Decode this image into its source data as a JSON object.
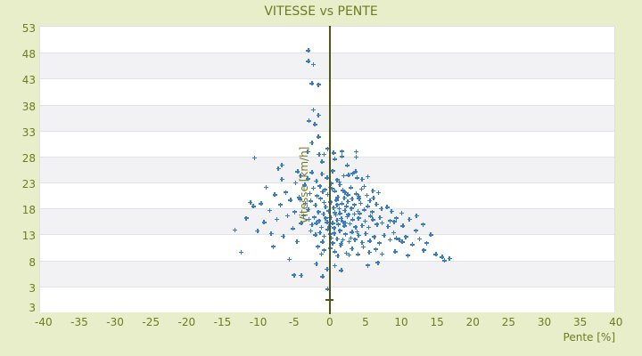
{
  "title": "VITESSE vs PENTE",
  "colors": {
    "background": "#e8eeca",
    "band_white": "#ffffff",
    "band_gray": "#f2f2f4",
    "band_border": "#e2e2e9",
    "axis_line": "#4d5916",
    "text": "#6e7b21",
    "marker": "#3a7cc2"
  },
  "chart_data": {
    "type": "scatter",
    "title": "VITESSE vs PENTE",
    "xlabel": "Pente [%]",
    "ylabel": "Vitesse [km/h]",
    "legend": "none",
    "grid": "horizontal-bands",
    "marker": "plus",
    "x_tick_values": [
      -40,
      -35,
      -30,
      -25,
      -20,
      -15,
      -10,
      -5,
      0,
      5,
      10,
      15,
      20,
      25,
      30,
      35,
      40
    ],
    "x_tick_labels": [
      "-40",
      "-35",
      "-30",
      "-25",
      "-20",
      "-15",
      "-10",
      "-5",
      "0",
      "5",
      "10",
      "15",
      "20",
      "25",
      "30",
      "35",
      "40"
    ],
    "y_tick_labels": [
      "53",
      "48",
      "43",
      "38",
      "33",
      "28",
      "23",
      "18",
      "13",
      "8",
      "3",
      "3"
    ],
    "x_range": [
      -40.6,
      39.9
    ],
    "y_range": [
      -2.2,
      53.0
    ],
    "points": [
      [
        -3.1,
        48.4
      ],
      [
        -3.1,
        46.3
      ],
      [
        -2.4,
        45.7
      ],
      [
        -2.6,
        42.0
      ],
      [
        -1.7,
        41.8
      ],
      [
        -2.4,
        36.9
      ],
      [
        -1.7,
        35.9
      ],
      [
        -3.0,
        34.8
      ],
      [
        -2.2,
        34.1
      ],
      [
        -1.7,
        31.7
      ],
      [
        -2.6,
        30.6
      ],
      [
        0.4,
        28.6
      ],
      [
        1.6,
        28.9
      ],
      [
        1.6,
        27.9
      ],
      [
        3.6,
        28.8
      ],
      [
        3.6,
        27.8
      ],
      [
        -0.9,
        28.3
      ],
      [
        0.6,
        27.4
      ],
      [
        -1.2,
        26.9
      ],
      [
        2.3,
        26.2
      ],
      [
        -0.4,
        29.4
      ],
      [
        -3.2,
        28.8
      ],
      [
        -1.6,
        28.3
      ],
      [
        -10.6,
        27.6
      ],
      [
        -7.3,
        25.6
      ],
      [
        -4.6,
        25.0
      ],
      [
        -6.8,
        26.3
      ],
      [
        -13.4,
        13.7
      ],
      [
        -12.5,
        9.4
      ],
      [
        -11.2,
        19.0
      ],
      [
        -10.8,
        18.3
      ],
      [
        -9.7,
        18.8
      ],
      [
        -9.0,
        22.0
      ],
      [
        -8.5,
        17.5
      ],
      [
        -8.3,
        13.0
      ],
      [
        -7.8,
        20.5
      ],
      [
        -7.5,
        15.8
      ],
      [
        -7.0,
        18.6
      ],
      [
        -6.6,
        12.5
      ],
      [
        -6.3,
        21.0
      ],
      [
        -6.0,
        16.5
      ],
      [
        -5.6,
        19.5
      ],
      [
        -5.3,
        14.0
      ],
      [
        -5.0,
        17.2
      ],
      [
        -4.7,
        11.5
      ],
      [
        -4.4,
        20.0
      ],
      [
        -4.1,
        15.0
      ],
      [
        -9.3,
        15.2
      ],
      [
        -10.2,
        13.5
      ],
      [
        -11.8,
        16.0
      ],
      [
        -8.0,
        10.5
      ],
      [
        -5.8,
        8.0
      ],
      [
        -4.9,
        22.8
      ],
      [
        -6.8,
        23.5
      ],
      [
        -4.2,
        24.2
      ],
      [
        -5.1,
        5.0
      ],
      [
        -4.1,
        4.9
      ],
      [
        -2.6,
        24.8
      ],
      [
        -1.2,
        24.5
      ],
      [
        0.3,
        25.1
      ],
      [
        1.8,
        24.2
      ],
      [
        3.1,
        24.6
      ],
      [
        -0.5,
        23.8
      ],
      [
        0.9,
        23.4
      ],
      [
        2.5,
        24.3
      ],
      [
        3.5,
        25.0
      ],
      [
        3.7,
        23.8
      ],
      [
        -2.0,
        23.2
      ],
      [
        4.4,
        23.5
      ],
      [
        1.2,
        23.0
      ],
      [
        -3.2,
        23.6
      ],
      [
        5.2,
        24.0
      ],
      [
        0.1,
        22.7
      ],
      [
        -3.6,
        22.4
      ],
      [
        -2.4,
        21.8
      ],
      [
        -1.5,
        22.2
      ],
      [
        -0.8,
        21.5
      ],
      [
        -0.1,
        22.0
      ],
      [
        0.6,
        21.2
      ],
      [
        1.3,
        22.5
      ],
      [
        2.0,
        21.0
      ],
      [
        2.8,
        21.9
      ],
      [
        3.6,
        20.7
      ],
      [
        4.3,
        21.6
      ],
      [
        5.1,
        20.4
      ],
      [
        5.9,
        21.3
      ],
      [
        6.7,
        20.9
      ],
      [
        -1.9,
        20.3
      ],
      [
        -0.4,
        20.6
      ],
      [
        1.0,
        20.1
      ],
      [
        2.4,
        20.5
      ],
      [
        3.9,
        20.2
      ],
      [
        0.2,
        21.7
      ],
      [
        1.7,
        21.4
      ],
      [
        -2.9,
        20.8
      ],
      [
        4.7,
        22.1
      ],
      [
        -1.1,
        21.1
      ],
      [
        -4.3,
        19.6
      ],
      [
        -3.5,
        18.9
      ],
      [
        -2.8,
        19.3
      ],
      [
        -2.1,
        18.5
      ],
      [
        -1.4,
        19.8
      ],
      [
        -0.7,
        18.2
      ],
      [
        0.0,
        19.1
      ],
      [
        0.4,
        18.0
      ],
      [
        0.8,
        19.5
      ],
      [
        1.2,
        17.8
      ],
      [
        1.6,
        18.8
      ],
      [
        2.0,
        17.5
      ],
      [
        2.4,
        19.2
      ],
      [
        2.9,
        17.9
      ],
      [
        3.3,
        18.6
      ],
      [
        3.8,
        17.3
      ],
      [
        4.2,
        18.9
      ],
      [
        4.7,
        17.6
      ],
      [
        5.2,
        18.3
      ],
      [
        5.8,
        17.2
      ],
      [
        6.4,
        18.7
      ],
      [
        7.1,
        17.8
      ],
      [
        7.9,
        18.1
      ],
      [
        -0.3,
        17.4
      ],
      [
        0.6,
        17.1
      ],
      [
        1.9,
        19.9
      ],
      [
        -1.7,
        17.2
      ],
      [
        3.0,
        19.7
      ],
      [
        -3.1,
        17.7
      ],
      [
        5.5,
        19.4
      ],
      [
        2.2,
        18.3
      ],
      [
        0.9,
        18.6
      ],
      [
        -0.9,
        19.0
      ],
      [
        4.0,
        19.8
      ],
      [
        6.0,
        19.9
      ],
      [
        -3.8,
        16.5
      ],
      [
        -3.0,
        15.8
      ],
      [
        -2.3,
        16.2
      ],
      [
        -1.6,
        15.5
      ],
      [
        -1.0,
        16.8
      ],
      [
        -0.5,
        15.2
      ],
      [
        0.0,
        16.1
      ],
      [
        0.3,
        15.0
      ],
      [
        0.7,
        16.6
      ],
      [
        1.1,
        14.8
      ],
      [
        1.5,
        15.9
      ],
      [
        1.9,
        14.5
      ],
      [
        2.3,
        16.3
      ],
      [
        2.7,
        14.9
      ],
      [
        3.1,
        15.7
      ],
      [
        3.5,
        14.3
      ],
      [
        3.9,
        16.0
      ],
      [
        4.4,
        14.6
      ],
      [
        4.8,
        15.4
      ],
      [
        5.3,
        14.2
      ],
      [
        5.9,
        15.7
      ],
      [
        6.5,
        14.8
      ],
      [
        7.2,
        15.1
      ],
      [
        8.0,
        14.4
      ],
      [
        8.9,
        15.3
      ],
      [
        -0.2,
        14.4
      ],
      [
        0.5,
        14.1
      ],
      [
        1.3,
        16.9
      ],
      [
        -1.3,
        14.2
      ],
      [
        2.5,
        16.7
      ],
      [
        -2.6,
        14.7
      ],
      [
        4.1,
        16.9
      ],
      [
        1.7,
        15.3
      ],
      [
        0.9,
        15.6
      ],
      [
        -0.7,
        16.0
      ],
      [
        3.3,
        16.8
      ],
      [
        5.6,
        16.4
      ],
      [
        2.1,
        15.1
      ],
      [
        6.9,
        16.1
      ],
      [
        -2.0,
        15.0
      ],
      [
        -2.8,
        13.5
      ],
      [
        -2.1,
        12.8
      ],
      [
        -1.5,
        13.2
      ],
      [
        -0.9,
        12.5
      ],
      [
        -0.4,
        13.8
      ],
      [
        0.1,
        12.2
      ],
      [
        0.5,
        13.1
      ],
      [
        0.9,
        12.0
      ],
      [
        1.3,
        13.6
      ],
      [
        1.7,
        11.8
      ],
      [
        2.1,
        12.9
      ],
      [
        2.6,
        11.5
      ],
      [
        3.0,
        13.3
      ],
      [
        3.4,
        11.9
      ],
      [
        3.9,
        12.7
      ],
      [
        4.4,
        11.3
      ],
      [
        4.9,
        13.0
      ],
      [
        5.5,
        11.6
      ],
      [
        6.1,
        12.4
      ],
      [
        6.8,
        11.2
      ],
      [
        7.5,
        12.7
      ],
      [
        8.3,
        11.8
      ],
      [
        9.2,
        12.1
      ],
      [
        10.0,
        11.4
      ],
      [
        0.3,
        11.2
      ],
      [
        1.5,
        11.1
      ],
      [
        -1.1,
        11.4
      ],
      [
        2.8,
        12.2
      ],
      [
        -0.1,
        12.9
      ],
      [
        3.7,
        13.4
      ],
      [
        -1.8,
        10.5
      ],
      [
        -0.9,
        9.8
      ],
      [
        -0.1,
        10.2
      ],
      [
        0.6,
        9.5
      ],
      [
        1.4,
        10.8
      ],
      [
        2.2,
        9.2
      ],
      [
        3.0,
        10.1
      ],
      [
        3.8,
        9.0
      ],
      [
        4.6,
        10.4
      ],
      [
        5.4,
        9.4
      ],
      [
        6.3,
        10.0
      ],
      [
        7.2,
        9.1
      ],
      [
        1.0,
        8.7
      ],
      [
        2.6,
        8.9
      ],
      [
        -1.3,
        9.1
      ],
      [
        8.3,
        15.5
      ],
      [
        8.8,
        13.2
      ],
      [
        9.2,
        16.0
      ],
      [
        9.6,
        11.8
      ],
      [
        10.1,
        14.5
      ],
      [
        10.5,
        12.4
      ],
      [
        11.0,
        15.8
      ],
      [
        11.4,
        10.9
      ],
      [
        11.9,
        13.6
      ],
      [
        12.4,
        12.0
      ],
      [
        12.9,
        14.8
      ],
      [
        13.4,
        11.2
      ],
      [
        14.0,
        12.8
      ],
      [
        14.7,
        9.0
      ],
      [
        15.6,
        8.5
      ],
      [
        15.9,
        7.8
      ],
      [
        16.6,
        8.2
      ],
      [
        12.0,
        16.5
      ],
      [
        9.0,
        9.5
      ],
      [
        10.8,
        8.8
      ],
      [
        13.0,
        9.8
      ],
      [
        8.5,
        17.3
      ],
      [
        9.9,
        17.0
      ],
      [
        -0.4,
        2.3
      ],
      [
        -1.1,
        4.7
      ],
      [
        -0.5,
        6.1
      ],
      [
        0.6,
        6.8
      ],
      [
        -2.0,
        7.2
      ],
      [
        1.5,
        5.9
      ],
      [
        6.6,
        7.4
      ],
      [
        5.2,
        6.9
      ]
    ]
  }
}
